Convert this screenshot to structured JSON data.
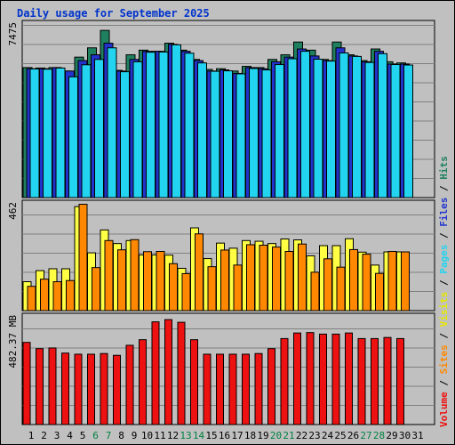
{
  "title": "Daily usage for September 2025",
  "colors": {
    "hits": "#1f8060",
    "files": "#2233cc",
    "pages": "#22d4f0",
    "visits": "#ffff44",
    "sites": "#ff8800",
    "volume": "#ee1111",
    "panel_bg": "#c0c0c0",
    "grid": "#808080",
    "weekend_label": "#008040"
  },
  "chart_data": [
    {
      "type": "bar",
      "panel": "top",
      "y_tick_label": "7475",
      "ylim": [
        0,
        7475
      ],
      "categories": [
        "1",
        "2",
        "3",
        "4",
        "5",
        "6",
        "7",
        "8",
        "9",
        "10",
        "11",
        "12",
        "13",
        "14",
        "15",
        "16",
        "17",
        "18",
        "19",
        "20",
        "21",
        "22",
        "23",
        "24",
        "25",
        "26",
        "27",
        "28",
        "29",
        "30",
        "31"
      ],
      "series": [
        {
          "name": "Hits",
          "values": [
            5600,
            5580,
            5600,
            5450,
            6050,
            6450,
            7200,
            5480,
            6150,
            6350,
            6300,
            6650,
            6350,
            5950,
            5520,
            5550,
            5450,
            5650,
            5600,
            5950,
            6150,
            6700,
            6350,
            5950,
            6700,
            6150,
            5900,
            6400,
            5850,
            5800,
            0
          ]
        },
        {
          "name": "Files",
          "values": [
            5550,
            5550,
            5600,
            5450,
            5900,
            6150,
            6650,
            5450,
            5950,
            6300,
            6300,
            6600,
            6300,
            5900,
            5450,
            5500,
            5350,
            5600,
            5550,
            5850,
            6050,
            6400,
            6100,
            5900,
            6450,
            6100,
            5850,
            6300,
            5750,
            5750,
            0
          ]
        },
        {
          "name": "Pages",
          "values": [
            5540,
            5530,
            5580,
            5200,
            5720,
            5950,
            6450,
            5420,
            5850,
            6260,
            6270,
            6580,
            6220,
            5800,
            5440,
            5460,
            5330,
            5560,
            5500,
            5730,
            5980,
            6300,
            5960,
            5880,
            6230,
            6080,
            5820,
            6200,
            5730,
            5710,
            0
          ]
        }
      ]
    },
    {
      "type": "bar",
      "panel": "middle",
      "y_tick_label": "462",
      "ylim": [
        0,
        462
      ],
      "categories": [
        "1",
        "2",
        "3",
        "4",
        "5",
        "6",
        "7",
        "8",
        "9",
        "10",
        "11",
        "12",
        "13",
        "14",
        "15",
        "16",
        "17",
        "18",
        "19",
        "20",
        "21",
        "22",
        "23",
        "24",
        "25",
        "26",
        "27",
        "28",
        "29",
        "30",
        "31"
      ],
      "series": [
        {
          "name": "Visits",
          "values": [
            125,
            173,
            181,
            181,
            450,
            250,
            349,
            290,
            303,
            241,
            241,
            240,
            183,
            358,
            225,
            292,
            270,
            303,
            300,
            290,
            310,
            306,
            237,
            281,
            281,
            311,
            253,
            197,
            254,
            254,
            0
          ]
        },
        {
          "name": "Sites",
          "values": [
            105,
            136,
            125,
            130,
            460,
            186,
            303,
            263,
            307,
            255,
            256,
            203,
            160,
            332,
            190,
            262,
            197,
            285,
            283,
            275,
            256,
            288,
            166,
            224,
            188,
            264,
            244,
            161,
            256,
            254,
            0
          ]
        }
      ]
    },
    {
      "type": "bar",
      "panel": "bottom",
      "y_tick_label": "482.37 MB",
      "ylim": [
        0,
        482.37
      ],
      "categories": [
        "1",
        "2",
        "3",
        "4",
        "5",
        "6",
        "7",
        "8",
        "9",
        "10",
        "11",
        "12",
        "13",
        "14",
        "15",
        "16",
        "17",
        "18",
        "19",
        "20",
        "21",
        "22",
        "23",
        "24",
        "25",
        "26",
        "27",
        "28",
        "29",
        "30",
        "31"
      ],
      "series": [
        {
          "name": "Volume",
          "values": [
            368,
            340,
            343,
            320,
            315,
            315,
            318,
            310,
            355,
            380,
            460,
            470,
            458,
            380,
            315,
            315,
            315,
            315,
            318,
            340,
            385,
            410,
            412,
            405,
            405,
            410,
            385,
            385,
            390,
            385,
            0
          ]
        }
      ]
    }
  ],
  "x_axis": {
    "labels": [
      "1",
      "2",
      "3",
      "4",
      "5",
      "6",
      "7",
      "8",
      "9",
      "10",
      "11",
      "12",
      "13",
      "14",
      "15",
      "16",
      "17",
      "18",
      "19",
      "20",
      "21",
      "22",
      "23",
      "24",
      "25",
      "26",
      "27",
      "28",
      "29",
      "30",
      "31"
    ],
    "weekend": [
      false,
      false,
      false,
      false,
      false,
      true,
      true,
      false,
      false,
      false,
      false,
      false,
      true,
      true,
      false,
      false,
      false,
      false,
      false,
      true,
      true,
      false,
      false,
      false,
      false,
      false,
      true,
      true,
      false,
      false,
      false
    ]
  },
  "right_legend": [
    {
      "text": "Volume",
      "color": "#ee1111"
    },
    {
      "text": " / ",
      "color": "#000000"
    },
    {
      "text": "Sites",
      "color": "#ff8800"
    },
    {
      "text": " / ",
      "color": "#000000"
    },
    {
      "text": "Visits",
      "color": "#e8e800"
    },
    {
      "text": " / ",
      "color": "#000000"
    },
    {
      "text": "Pages",
      "color": "#22d4f0"
    },
    {
      "text": " / ",
      "color": "#000000"
    },
    {
      "text": "Files",
      "color": "#2233cc"
    },
    {
      "text": " / ",
      "color": "#000000"
    },
    {
      "text": "Hits",
      "color": "#1f8060"
    }
  ]
}
